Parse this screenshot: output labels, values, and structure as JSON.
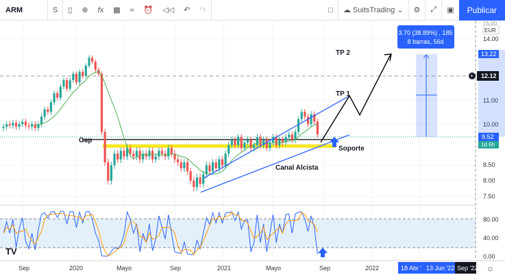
{
  "toolbar": {
    "symbol": "ARM",
    "interval": "S",
    "icons": [
      "candles-icon",
      "add-compare-icon",
      "indicators-icon",
      "templates-icon",
      "alert-icon",
      "replay-icon",
      "undo-icon",
      "redo-icon"
    ],
    "layout_name": "SuitsTrading",
    "publish": "Publicar"
  },
  "price_axis": {
    "currency": "EUR",
    "ticks": [
      "14.00",
      "11.00",
      "10.00",
      "8.50",
      "8.00",
      "7.50"
    ],
    "top_tick": "15.00",
    "target_label": "13.22",
    "crosshair_label": "12.12",
    "last_price": "9.52",
    "countdown": "1d 6h"
  },
  "osc_axis": {
    "ticks": [
      "80.00",
      "40.00",
      "0.00"
    ]
  },
  "time_axis": {
    "ticks": [
      "Sep",
      "2020",
      "Mayo",
      "Sep",
      "2021",
      "Mayo",
      "Sep",
      "2022"
    ],
    "range_start": "18 Abr '",
    "range_end": "13 Jun '22",
    "crosshair": "Sep '22"
  },
  "measure": {
    "line1": "3.70 (38.89%) , 185",
    "line2": "8 barras, 56d"
  },
  "annotations": {
    "gap": "Gap",
    "tp1": "TP 1",
    "tp2": "TP 2",
    "support": "Soporte",
    "channel": "Canal Alcista"
  },
  "colors": {
    "up": "#26a69a",
    "down": "#ef5350",
    "accent": "#2962ff",
    "ma": "#4caf50",
    "k": "#2962ff",
    "d": "#ff9800"
  },
  "chart_data": {
    "type": "candlestick",
    "symbol": "ARM",
    "closes": [
      9.9,
      10.0,
      9.95,
      10.05,
      9.9,
      10.0,
      10.1,
      9.95,
      9.9,
      10.0,
      9.85,
      10.0,
      10.3,
      10.6,
      10.5,
      10.9,
      11.3,
      11.1,
      11.6,
      11.9,
      11.5,
      11.9,
      12.2,
      11.8,
      12.3,
      12.1,
      12.6,
      13.0,
      12.8,
      12.4,
      12.2,
      9.7,
      8.6,
      8.0,
      8.5,
      8.9,
      8.7,
      9.0,
      8.8,
      9.1,
      8.9,
      8.8,
      9.0,
      8.7,
      8.9,
      8.8,
      9.0,
      8.7,
      8.8,
      9.0,
      8.9,
      8.8,
      9.1,
      8.9,
      8.7,
      8.6,
      8.4,
      8.6,
      8.3,
      8.0,
      7.8,
      8.1,
      7.9,
      8.2,
      8.5,
      8.3,
      8.6,
      8.4,
      8.7,
      8.5,
      8.9,
      9.2,
      9.4,
      9.2,
      9.5,
      9.1,
      9.3,
      9.4,
      9.1,
      9.2,
      9.5,
      9.2,
      9.4,
      9.1,
      9.3,
      9.5,
      9.2,
      9.4,
      9.3,
      9.5,
      9.6,
      9.4,
      9.7,
      10.2,
      10.5,
      10.3,
      10.0,
      10.4,
      10.1,
      9.6
    ],
    "ylim": [
      7.5,
      15
    ],
    "scale": "log",
    "oscillator_levels": [
      80,
      40
    ]
  }
}
